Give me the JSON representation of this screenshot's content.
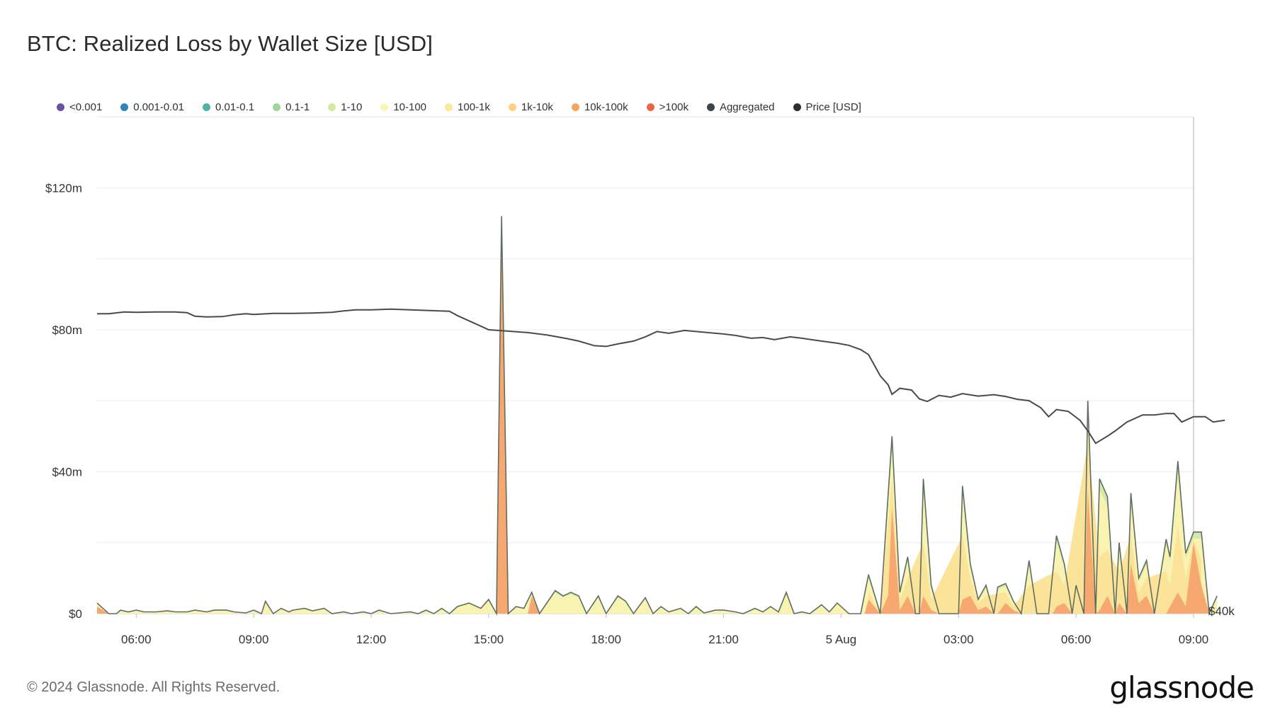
{
  "title": "BTC: Realized Loss by Wallet Size [USD]",
  "footer": {
    "copyright": "© 2024 Glassnode. All Rights Reserved.",
    "logo": "glassnode"
  },
  "legend": [
    {
      "name": "<0.001",
      "color": "#6a51a3"
    },
    {
      "name": "0.001-0.01",
      "color": "#3182bd"
    },
    {
      "name": "0.01-0.1",
      "color": "#4fb3a9"
    },
    {
      "name": "0.1-1",
      "color": "#9fd49b"
    },
    {
      "name": "1-10",
      "color": "#d3ea9d"
    },
    {
      "name": "10-100",
      "color": "#f8f6b2"
    },
    {
      "name": "100-1k",
      "color": "#fbe89a"
    },
    {
      "name": "1k-10k",
      "color": "#fdd27f"
    },
    {
      "name": "10k-100k",
      "color": "#f6a35c"
    },
    {
      "name": ">100k",
      "color": "#ef6548"
    },
    {
      "name": "Aggregated",
      "color": "#3d4449"
    },
    {
      "name": "Price [USD]",
      "color": "#2f2f2f"
    }
  ],
  "chart_data": {
    "type": "area",
    "stacked": true,
    "x_ticks": [
      "06:00",
      "09:00",
      "12:00",
      "15:00",
      "18:00",
      "21:00",
      "5 Aug",
      "03:00",
      "06:00",
      "09:00"
    ],
    "y_left": {
      "ticks": [
        "$0",
        "$40m",
        "$80m",
        "$120m"
      ],
      "tick_values": [
        0,
        40,
        80,
        120
      ],
      "unit": "USD millions",
      "range": [
        0,
        140
      ]
    },
    "y_right": {
      "ticks": [
        "$40k"
      ],
      "tick_values": [
        40000
      ]
    },
    "grid": true,
    "legend_position": "top",
    "x_range_hours": [
      5,
      33
    ],
    "aggregated": [
      [
        5.0,
        3
      ],
      [
        5.3,
        0
      ],
      [
        5.5,
        0
      ],
      [
        5.6,
        1
      ],
      [
        5.8,
        0.5
      ],
      [
        6.0,
        1
      ],
      [
        6.2,
        0.5
      ],
      [
        6.5,
        0.5
      ],
      [
        6.8,
        0.8
      ],
      [
        7.0,
        0.5
      ],
      [
        7.3,
        0.5
      ],
      [
        7.5,
        1
      ],
      [
        7.8,
        0.5
      ],
      [
        8.0,
        1
      ],
      [
        8.3,
        1
      ],
      [
        8.5,
        0.5
      ],
      [
        8.8,
        0.2
      ],
      [
        9.0,
        1
      ],
      [
        9.2,
        0
      ],
      [
        9.3,
        3.5
      ],
      [
        9.5,
        0
      ],
      [
        9.7,
        1.5
      ],
      [
        9.9,
        0.5
      ],
      [
        10.0,
        1
      ],
      [
        10.3,
        1.5
      ],
      [
        10.5,
        0.8
      ],
      [
        10.8,
        1.5
      ],
      [
        11.0,
        0
      ],
      [
        11.3,
        0.5
      ],
      [
        11.5,
        0
      ],
      [
        11.8,
        0.5
      ],
      [
        12.0,
        0
      ],
      [
        12.2,
        1
      ],
      [
        12.5,
        0
      ],
      [
        13.0,
        0.5
      ],
      [
        13.2,
        0
      ],
      [
        13.4,
        1
      ],
      [
        13.6,
        0
      ],
      [
        13.8,
        1.5
      ],
      [
        14.0,
        0
      ],
      [
        14.2,
        2
      ],
      [
        14.5,
        3
      ],
      [
        14.8,
        1.5
      ],
      [
        15.0,
        4
      ],
      [
        15.2,
        0
      ],
      [
        15.33,
        112
      ],
      [
        15.5,
        0
      ],
      [
        15.7,
        2
      ],
      [
        15.9,
        1.5
      ],
      [
        16.1,
        6
      ],
      [
        16.3,
        0
      ],
      [
        16.7,
        6.5
      ],
      [
        16.9,
        5
      ],
      [
        17.1,
        6
      ],
      [
        17.3,
        5
      ],
      [
        17.5,
        0
      ],
      [
        17.8,
        5
      ],
      [
        18.0,
        0
      ],
      [
        18.3,
        5
      ],
      [
        18.5,
        3.5
      ],
      [
        18.7,
        0
      ],
      [
        19.0,
        4.5
      ],
      [
        19.2,
        0
      ],
      [
        19.4,
        2
      ],
      [
        19.6,
        0.5
      ],
      [
        19.9,
        1.5
      ],
      [
        20.1,
        0
      ],
      [
        20.3,
        2
      ],
      [
        20.5,
        0.2
      ],
      [
        20.8,
        1
      ],
      [
        21.0,
        1
      ],
      [
        21.3,
        0.5
      ],
      [
        21.5,
        0
      ],
      [
        21.8,
        1.5
      ],
      [
        22.0,
        0.5
      ],
      [
        22.2,
        2
      ],
      [
        22.4,
        0.5
      ],
      [
        22.6,
        6
      ],
      [
        22.8,
        0
      ],
      [
        23.0,
        0.5
      ],
      [
        23.2,
        0
      ],
      [
        23.5,
        2.5
      ],
      [
        23.7,
        0.5
      ],
      [
        23.9,
        3
      ],
      [
        24.2,
        0
      ],
      [
        24.5,
        0
      ],
      [
        24.7,
        11
      ],
      [
        25.0,
        0
      ],
      [
        25.3,
        50
      ],
      [
        25.5,
        6
      ],
      [
        25.7,
        16
      ],
      [
        25.9,
        0
      ],
      [
        26.0,
        0
      ],
      [
        26.1,
        38
      ],
      [
        26.3,
        8
      ],
      [
        26.5,
        0
      ],
      [
        27.0,
        0
      ],
      [
        27.1,
        36
      ],
      [
        27.3,
        14
      ],
      [
        27.5,
        4
      ],
      [
        27.7,
        8
      ],
      [
        27.9,
        0
      ],
      [
        28.0,
        7.5
      ],
      [
        28.2,
        8.5
      ],
      [
        28.4,
        3.5
      ],
      [
        28.6,
        0
      ],
      [
        28.8,
        15
      ],
      [
        29.0,
        0
      ],
      [
        29.3,
        0
      ],
      [
        29.5,
        22
      ],
      [
        29.7,
        14
      ],
      [
        29.9,
        0
      ],
      [
        30.0,
        8
      ],
      [
        30.2,
        0
      ],
      [
        30.3,
        60
      ],
      [
        30.5,
        0
      ],
      [
        30.6,
        38
      ],
      [
        30.8,
        33
      ],
      [
        31.0,
        0
      ],
      [
        31.1,
        20
      ],
      [
        31.3,
        0
      ],
      [
        31.4,
        34
      ],
      [
        31.6,
        10
      ],
      [
        31.8,
        15
      ],
      [
        32.0,
        0
      ],
      [
        32.3,
        21
      ],
      [
        32.4,
        16
      ],
      [
        32.6,
        43
      ],
      [
        32.8,
        17
      ],
      [
        33.0,
        23
      ],
      [
        33.2,
        23
      ],
      [
        33.4,
        0
      ],
      [
        33.6,
        5
      ]
    ],
    "series_10k_100k": [
      [
        5.0,
        2
      ],
      [
        5.3,
        0
      ],
      [
        14.8,
        0
      ],
      [
        15.0,
        0
      ],
      [
        15.2,
        0
      ],
      [
        15.33,
        112
      ],
      [
        15.5,
        0
      ],
      [
        16.0,
        0
      ],
      [
        16.1,
        5
      ],
      [
        16.3,
        0
      ],
      [
        24.6,
        0
      ],
      [
        24.7,
        4
      ],
      [
        25.0,
        0
      ],
      [
        25.2,
        5
      ],
      [
        25.3,
        30
      ],
      [
        25.5,
        1
      ],
      [
        25.7,
        5
      ],
      [
        25.9,
        0
      ],
      [
        26.0,
        0
      ],
      [
        26.1,
        5
      ],
      [
        26.3,
        1
      ],
      [
        26.5,
        0
      ],
      [
        27.0,
        0
      ],
      [
        27.1,
        4
      ],
      [
        27.3,
        5
      ],
      [
        27.5,
        1
      ],
      [
        27.7,
        2
      ],
      [
        27.9,
        0
      ],
      [
        28.0,
        0
      ],
      [
        28.2,
        3
      ],
      [
        28.4,
        1
      ],
      [
        28.6,
        0
      ],
      [
        29.4,
        0
      ],
      [
        29.5,
        2
      ],
      [
        29.7,
        3
      ],
      [
        29.9,
        0
      ],
      [
        30.0,
        0
      ],
      [
        30.2,
        0
      ],
      [
        30.3,
        35
      ],
      [
        30.5,
        0
      ],
      [
        30.6,
        1
      ],
      [
        30.8,
        5
      ],
      [
        31.0,
        0
      ],
      [
        31.1,
        3
      ],
      [
        31.3,
        0
      ],
      [
        31.4,
        14
      ],
      [
        31.6,
        3
      ],
      [
        31.8,
        5
      ],
      [
        32.0,
        0
      ],
      [
        32.3,
        0
      ],
      [
        32.4,
        2
      ],
      [
        32.6,
        6
      ],
      [
        32.8,
        2
      ],
      [
        33.0,
        20
      ],
      [
        33.2,
        8
      ],
      [
        33.4,
        0
      ],
      [
        33.6,
        0
      ]
    ],
    "series_1k_10k": [
      [
        24.7,
        6
      ],
      [
        25.0,
        0
      ],
      [
        25.3,
        38
      ],
      [
        25.5,
        4
      ],
      [
        25.7,
        10
      ],
      [
        26.1,
        20
      ],
      [
        26.3,
        4
      ],
      [
        27.1,
        22
      ],
      [
        27.3,
        10
      ],
      [
        27.5,
        3
      ],
      [
        27.7,
        5
      ],
      [
        28.2,
        6
      ],
      [
        28.4,
        2
      ],
      [
        28.8,
        8
      ],
      [
        29.5,
        12
      ],
      [
        29.7,
        8
      ],
      [
        30.3,
        48
      ],
      [
        30.6,
        16
      ],
      [
        30.8,
        18
      ],
      [
        31.1,
        12
      ],
      [
        31.4,
        22
      ],
      [
        31.6,
        6
      ],
      [
        31.8,
        10
      ],
      [
        32.3,
        12
      ],
      [
        32.4,
        8
      ],
      [
        32.6,
        25
      ],
      [
        32.8,
        10
      ],
      [
        33.0,
        21
      ],
      [
        33.2,
        15
      ]
    ],
    "price_usd": [
      [
        5.0,
        84.5
      ],
      [
        5.3,
        84.5
      ],
      [
        5.7,
        85.0
      ],
      [
        6.0,
        84.9
      ],
      [
        6.5,
        85.0
      ],
      [
        7.0,
        85.0
      ],
      [
        7.3,
        84.8
      ],
      [
        7.5,
        83.8
      ],
      [
        7.8,
        83.6
      ],
      [
        8.2,
        83.7
      ],
      [
        8.5,
        84.2
      ],
      [
        8.8,
        84.5
      ],
      [
        9.0,
        84.3
      ],
      [
        9.5,
        84.6
      ],
      [
        10.0,
        84.6
      ],
      [
        10.5,
        84.7
      ],
      [
        11.0,
        84.9
      ],
      [
        11.3,
        85.3
      ],
      [
        11.6,
        85.6
      ],
      [
        12.0,
        85.6
      ],
      [
        12.5,
        85.8
      ],
      [
        13.0,
        85.6
      ],
      [
        13.5,
        85.4
      ],
      [
        14.0,
        85.2
      ],
      [
        14.2,
        84.0
      ],
      [
        14.5,
        82.5
      ],
      [
        14.8,
        81.0
      ],
      [
        15.0,
        80.0
      ],
      [
        15.5,
        79.6
      ],
      [
        16.0,
        79.2
      ],
      [
        16.5,
        78.5
      ],
      [
        17.0,
        77.5
      ],
      [
        17.3,
        76.8
      ],
      [
        17.7,
        75.5
      ],
      [
        18.0,
        75.3
      ],
      [
        18.3,
        76.0
      ],
      [
        18.7,
        76.8
      ],
      [
        19.0,
        78.0
      ],
      [
        19.3,
        79.5
      ],
      [
        19.6,
        79.0
      ],
      [
        20.0,
        79.8
      ],
      [
        20.5,
        79.3
      ],
      [
        21.0,
        78.8
      ],
      [
        21.3,
        78.4
      ],
      [
        21.7,
        77.6
      ],
      [
        22.0,
        77.8
      ],
      [
        22.3,
        77.2
      ],
      [
        22.7,
        78.0
      ],
      [
        23.0,
        77.6
      ],
      [
        23.5,
        76.8
      ],
      [
        23.9,
        76.2
      ],
      [
        24.2,
        75.6
      ],
      [
        24.5,
        74.4
      ],
      [
        24.7,
        73.0
      ],
      [
        25.0,
        67.0
      ],
      [
        25.2,
        64.5
      ],
      [
        25.3,
        61.8
      ],
      [
        25.5,
        63.5
      ],
      [
        25.8,
        63.0
      ],
      [
        26.0,
        60.5
      ],
      [
        26.2,
        59.8
      ],
      [
        26.5,
        61.5
      ],
      [
        26.8,
        61.0
      ],
      [
        27.1,
        62.0
      ],
      [
        27.5,
        61.3
      ],
      [
        27.9,
        61.7
      ],
      [
        28.2,
        61.2
      ],
      [
        28.5,
        60.4
      ],
      [
        28.8,
        60.0
      ],
      [
        29.1,
        58.0
      ],
      [
        29.3,
        55.5
      ],
      [
        29.5,
        57.5
      ],
      [
        29.8,
        57.0
      ],
      [
        30.1,
        54.5
      ],
      [
        30.3,
        51.5
      ],
      [
        30.5,
        48.0
      ],
      [
        30.8,
        50.0
      ],
      [
        31.0,
        51.5
      ],
      [
        31.3,
        54.0
      ],
      [
        31.7,
        56.0
      ],
      [
        32.0,
        56.0
      ],
      [
        32.3,
        56.4
      ],
      [
        32.5,
        56.4
      ],
      [
        32.7,
        54.0
      ],
      [
        33.0,
        55.5
      ],
      [
        33.3,
        55.5
      ],
      [
        33.5,
        54.0
      ],
      [
        33.8,
        54.5
      ]
    ]
  }
}
